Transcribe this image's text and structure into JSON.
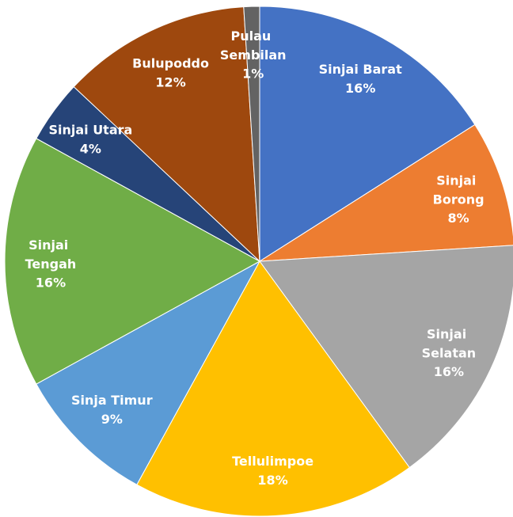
{
  "chart_data": {
    "type": "pie",
    "categories": [
      "Sinjai Barat",
      "Sinjai Borong",
      "Sinjai Selatan",
      "Tellulimpoe",
      "Sinja Timur",
      "Sinjai Tengah",
      "Sinjai Utara",
      "Bulupoddo",
      "Pulau Sembilan"
    ],
    "values": [
      16,
      8,
      16,
      18,
      9,
      16,
      4,
      12,
      1
    ],
    "value_labels": [
      "16%",
      "8%",
      "16%",
      "18%",
      "9%",
      "16%",
      "4%",
      "12%",
      "1%"
    ],
    "colors": [
      "#4472c4",
      "#ed7d31",
      "#a5a5a5",
      "#ffc000",
      "#5b9bd5",
      "#70ad47",
      "#264478",
      "#9e480e",
      "#636363"
    ]
  }
}
